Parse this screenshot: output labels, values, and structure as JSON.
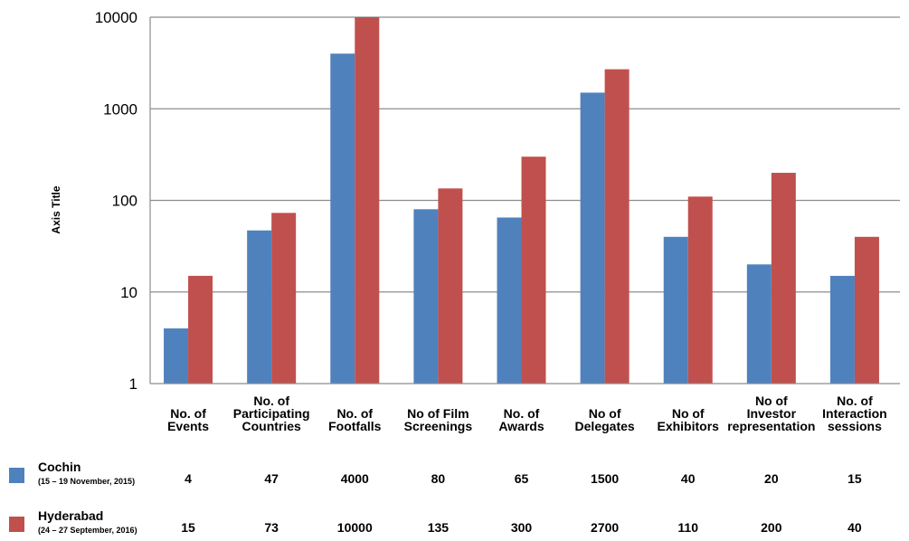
{
  "chart_data": {
    "type": "bar",
    "title": "",
    "ylabel": "Axis Title",
    "yscale": "log",
    "ylim": [
      1,
      10000
    ],
    "yticks": [
      "1",
      "10",
      "100",
      "1000",
      "10000"
    ],
    "grid": true,
    "legend_position": "bottom-left (data table)",
    "categories": [
      [
        "No. of",
        "Events"
      ],
      [
        "No. of",
        "Participating",
        "Countries"
      ],
      [
        "No. of",
        "Footfalls"
      ],
      [
        "No of Film",
        "Screenings"
      ],
      [
        "No. of",
        "Awards"
      ],
      [
        "No of",
        "Delegates"
      ],
      [
        "No of",
        "Exhibitors"
      ],
      [
        "No of",
        "Investor",
        "representation"
      ],
      [
        "No. of",
        "Interaction",
        "sessions"
      ]
    ],
    "series": [
      {
        "name": "Cochin",
        "subtitle": "(15 – 19 November, 2015)",
        "color": "#4f81bd",
        "values": [
          4,
          47,
          4000,
          80,
          65,
          1500,
          40,
          20,
          15
        ],
        "labels": [
          "4",
          "47",
          "4000",
          "80",
          "65",
          "1500",
          "40",
          "20",
          "15"
        ]
      },
      {
        "name": "Hyderabad",
        "subtitle": "(24 – 27 September, 2016)",
        "color": "#c0504d",
        "values": [
          15,
          73,
          10000,
          135,
          300,
          2700,
          110,
          200,
          40
        ],
        "labels": [
          "15",
          "73",
          "10000",
          "135",
          "300",
          "2700",
          "110",
          "200",
          "40"
        ]
      }
    ]
  }
}
